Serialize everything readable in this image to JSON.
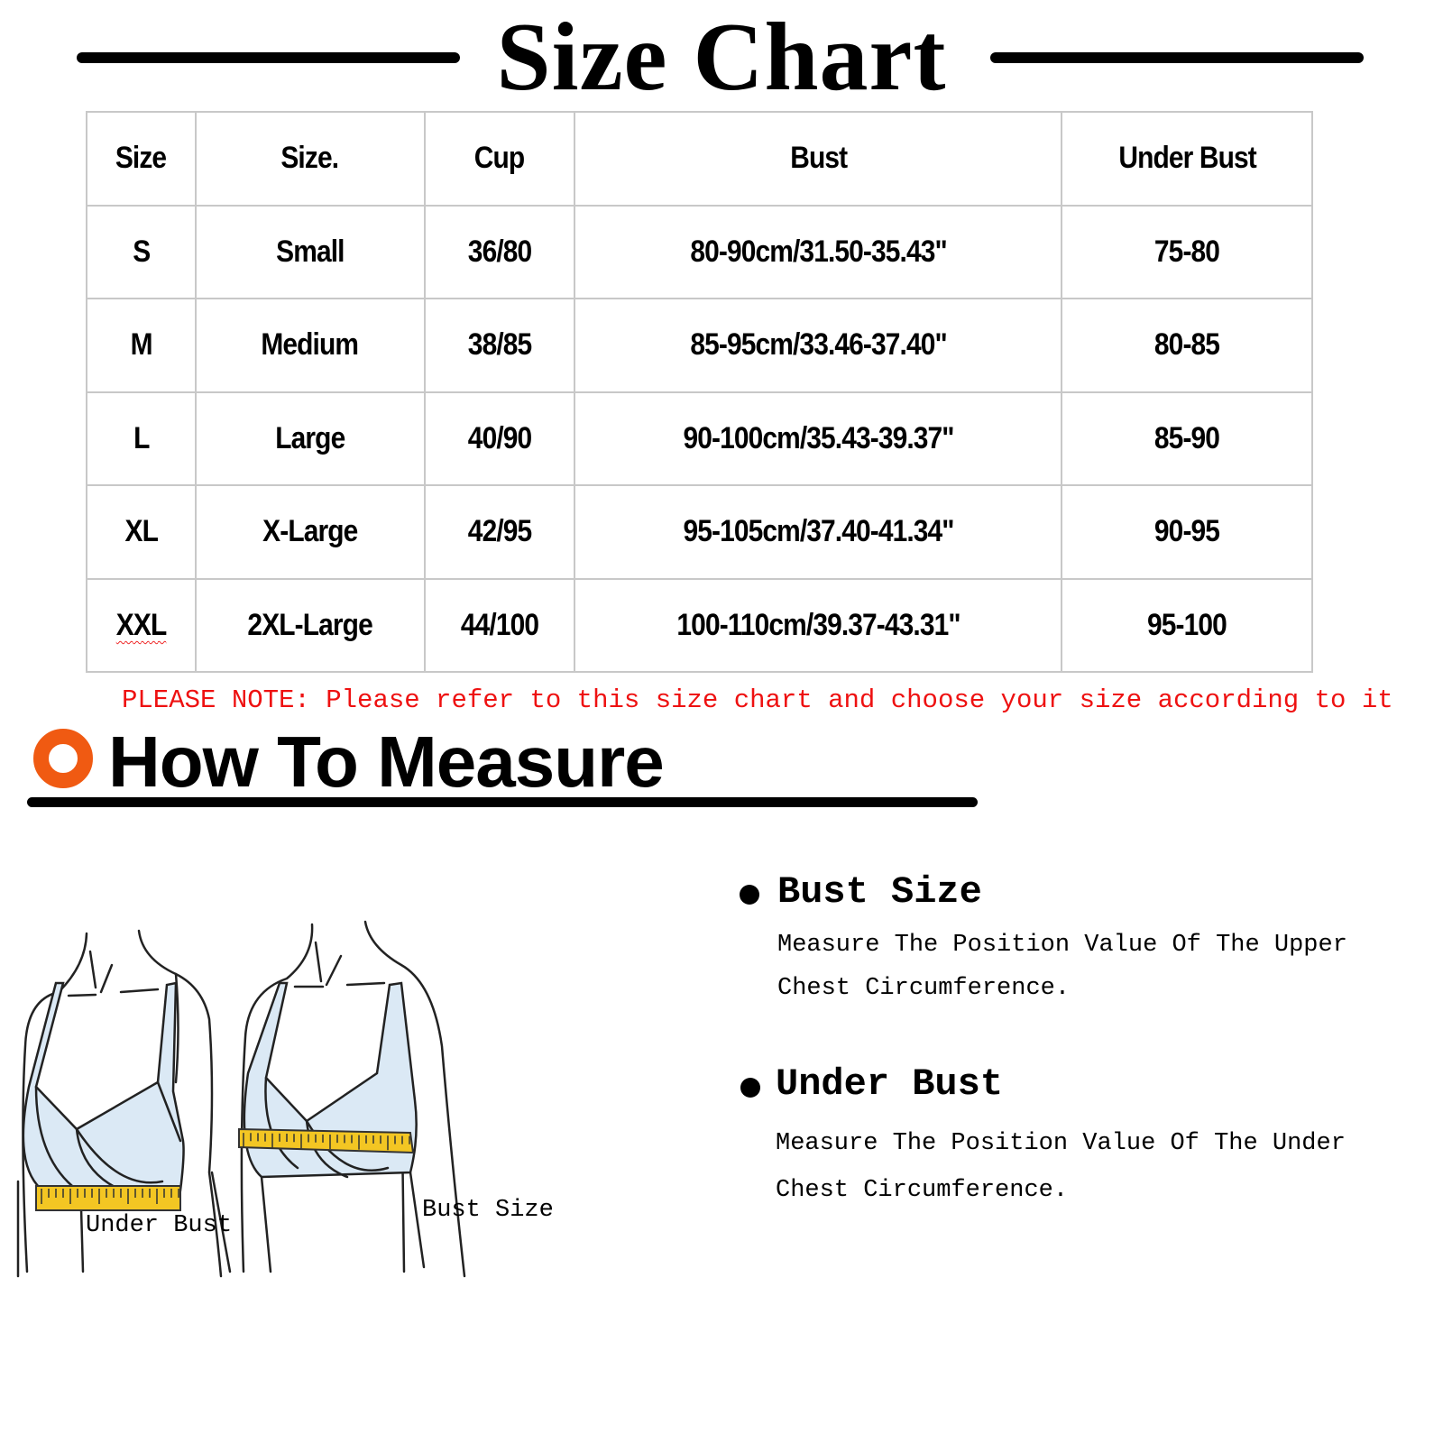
{
  "title": "Size Chart",
  "table": {
    "headers": [
      "Size",
      "Size.",
      "Cup",
      "Bust",
      "Under Bust"
    ],
    "rows": [
      [
        "S",
        "Small",
        "36/80",
        "80-90cm/31.50-35.43\"",
        "75-80"
      ],
      [
        "M",
        "Medium",
        "38/85",
        "85-95cm/33.46-37.40\"",
        "80-85"
      ],
      [
        "L",
        "Large",
        "40/90",
        "90-100cm/35.43-39.37\"",
        "85-90"
      ],
      [
        "XL",
        "X-Large",
        "42/95",
        "95-105cm/37.40-41.34\"",
        "90-95"
      ],
      [
        "XXL",
        "2XL-Large",
        "44/100",
        "100-110cm/39.37-43.31\"",
        "95-100"
      ]
    ]
  },
  "note": "PLEASE NOTE: Please refer to this size chart and choose your size according to it",
  "how_to": {
    "heading": "How To Measure",
    "icon": "orange-ring-icon",
    "accent": "#f05a12",
    "figure_labels": {
      "left": "Under Bust",
      "right": "Bust Size"
    },
    "items": [
      {
        "title": "Bust Size",
        "desc": "Measure The Position Value Of The Upper Chest Circumference."
      },
      {
        "title": "Under Bust",
        "desc": "Measure The Position Value Of The Under Chest Circumference."
      }
    ]
  },
  "colors": {
    "note": "#ee1111",
    "bra": "#dbe9f5",
    "tape": "#f3c623"
  }
}
